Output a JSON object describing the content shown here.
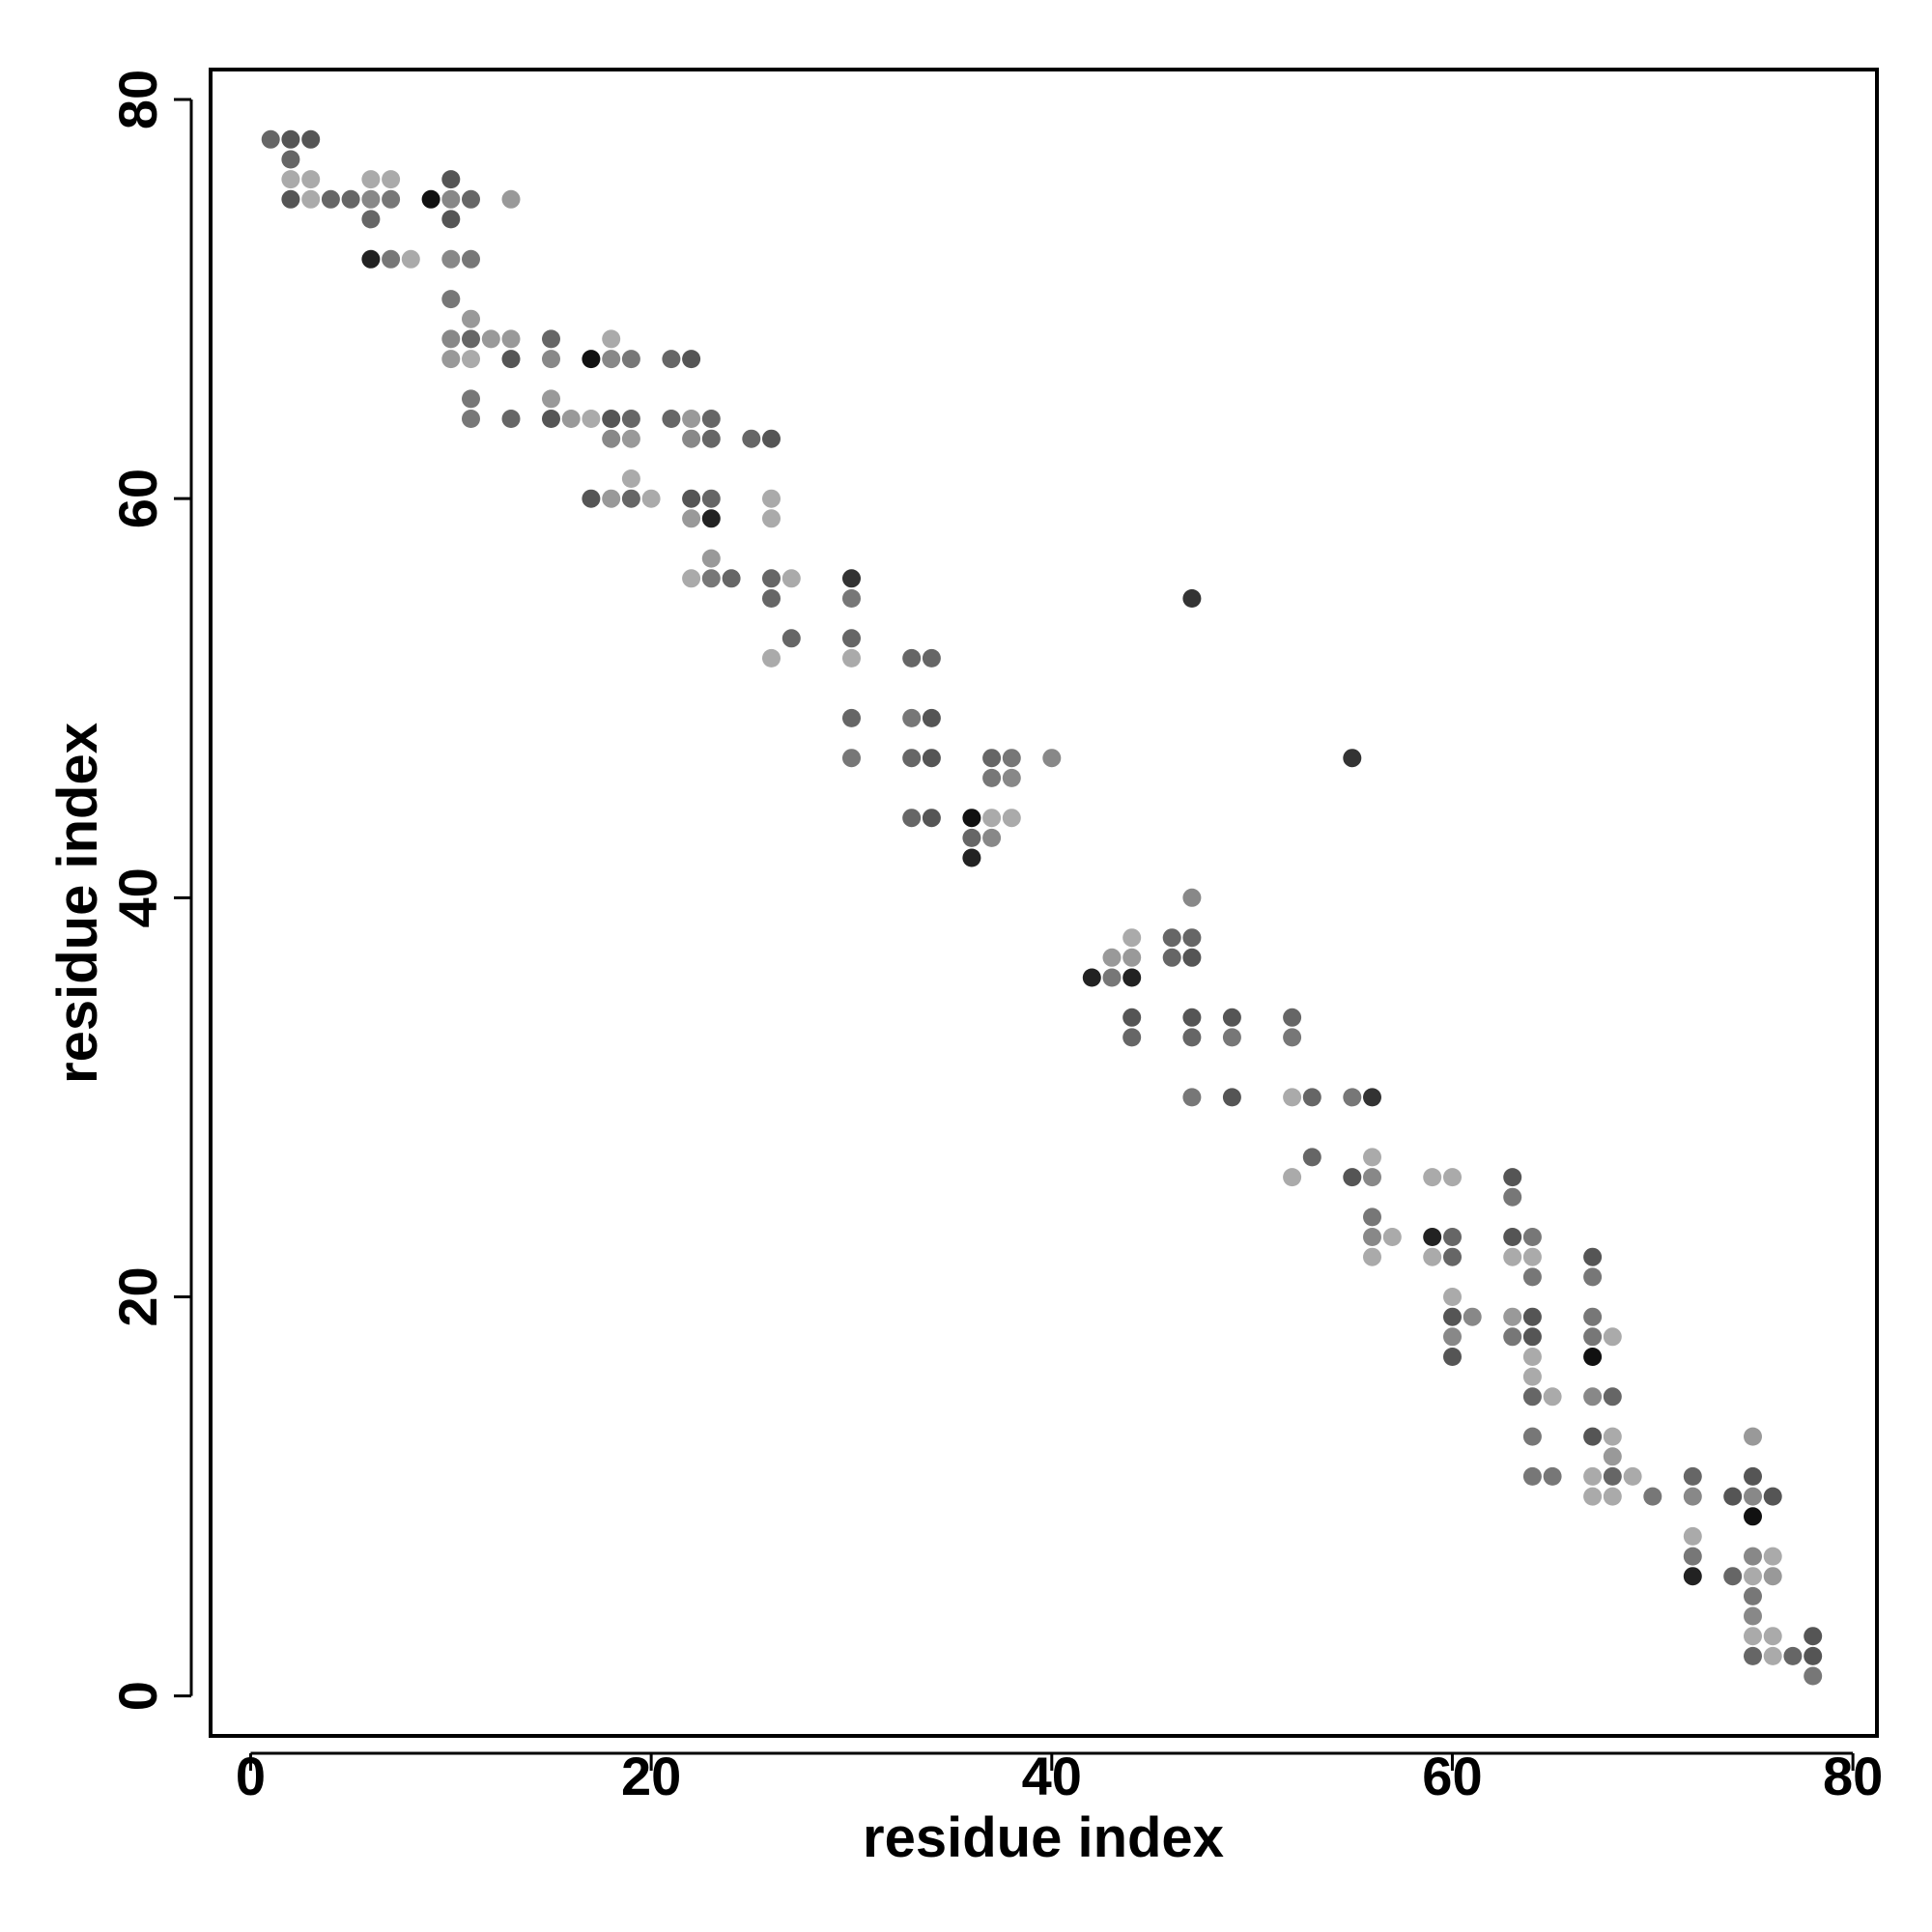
{
  "chart_data": {
    "type": "scatter",
    "title": "",
    "xlabel": "residue index",
    "ylabel": "residue index",
    "xlim": [
      -2,
      81.2
    ],
    "ylim": [
      -2,
      81.5
    ],
    "xticks": [
      0,
      20,
      40,
      60,
      80
    ],
    "yticks": [
      0,
      20,
      40,
      60,
      80
    ],
    "tick_labels_x": [
      "0",
      "20",
      "40",
      "60",
      "80"
    ],
    "tick_labels_y": [
      "0",
      "20",
      "40",
      "60",
      "80"
    ],
    "grid": false,
    "marker_color": "grayscale (black to light gray)",
    "points": [
      [
        1,
        78,
        "#666"
      ],
      [
        2,
        78,
        "#555"
      ],
      [
        3,
        78,
        "#555"
      ],
      [
        2,
        77,
        "#666"
      ],
      [
        2,
        76,
        "#aaa"
      ],
      [
        3,
        76,
        "#aaa"
      ],
      [
        2,
        75,
        "#555"
      ],
      [
        3,
        75,
        "#aaa"
      ],
      [
        4,
        75,
        "#666"
      ],
      [
        5,
        75,
        "#666"
      ],
      [
        6,
        75,
        "#888"
      ],
      [
        7,
        75,
        "#777"
      ],
      [
        6,
        76,
        "#aaa"
      ],
      [
        7,
        76,
        "#aaa"
      ],
      [
        6,
        74,
        "#666"
      ],
      [
        9,
        75,
        "#111"
      ],
      [
        10,
        75,
        "#888"
      ],
      [
        11,
        75,
        "#666"
      ],
      [
        13,
        75,
        "#999"
      ],
      [
        10,
        76,
        "#555"
      ],
      [
        10,
        74,
        "#555"
      ],
      [
        6,
        72,
        "#222"
      ],
      [
        7,
        72,
        "#777"
      ],
      [
        8,
        72,
        "#aaa"
      ],
      [
        10,
        72,
        "#888"
      ],
      [
        11,
        72,
        "#777"
      ],
      [
        10,
        70,
        "#777"
      ],
      [
        10,
        68,
        "#888"
      ],
      [
        11,
        68,
        "#666"
      ],
      [
        12,
        68,
        "#999"
      ],
      [
        13,
        68,
        "#999"
      ],
      [
        11,
        69,
        "#999"
      ],
      [
        10,
        67,
        "#999"
      ],
      [
        11,
        67,
        "#aaa"
      ],
      [
        13,
        67,
        "#555"
      ],
      [
        15,
        68,
        "#666"
      ],
      [
        15,
        67,
        "#888"
      ],
      [
        11,
        65,
        "#777"
      ],
      [
        11,
        64,
        "#777"
      ],
      [
        13,
        64,
        "#666"
      ],
      [
        15,
        65,
        "#999"
      ],
      [
        15,
        64,
        "#555"
      ],
      [
        16,
        64,
        "#999"
      ],
      [
        17,
        64,
        "#aaa"
      ],
      [
        17,
        67,
        "#111"
      ],
      [
        18,
        67,
        "#888"
      ],
      [
        19,
        67,
        "#777"
      ],
      [
        18,
        68,
        "#aaa"
      ],
      [
        18,
        64,
        "#555"
      ],
      [
        19,
        64,
        "#666"
      ],
      [
        18,
        63,
        "#888"
      ],
      [
        19,
        63,
        "#999"
      ],
      [
        21,
        67,
        "#666"
      ],
      [
        22,
        67,
        "#555"
      ],
      [
        21,
        64,
        "#666"
      ],
      [
        22,
        64,
        "#999"
      ],
      [
        23,
        64,
        "#666"
      ],
      [
        22,
        63,
        "#888"
      ],
      [
        23,
        63,
        "#666"
      ],
      [
        25,
        63,
        "#666"
      ],
      [
        26,
        63,
        "#555"
      ],
      [
        17,
        60,
        "#555"
      ],
      [
        18,
        60,
        "#999"
      ],
      [
        19,
        60,
        "#666"
      ],
      [
        20,
        60,
        "#aaa"
      ],
      [
        19,
        61,
        "#aaa"
      ],
      [
        22,
        60,
        "#555"
      ],
      [
        23,
        60,
        "#666"
      ],
      [
        22,
        59,
        "#999"
      ],
      [
        23,
        59,
        "#222"
      ],
      [
        26,
        60,
        "#aaa"
      ],
      [
        26,
        59,
        "#aaa"
      ],
      [
        22,
        56,
        "#aaa"
      ],
      [
        23,
        56,
        "#777"
      ],
      [
        24,
        56,
        "#666"
      ],
      [
        23,
        57,
        "#999"
      ],
      [
        26,
        56,
        "#666"
      ],
      [
        27,
        56,
        "#aaa"
      ],
      [
        26,
        55,
        "#666"
      ],
      [
        27,
        53,
        "#666"
      ],
      [
        26,
        52,
        "#aaa"
      ],
      [
        30,
        56,
        "#333"
      ],
      [
        30,
        55,
        "#777"
      ],
      [
        30,
        53,
        "#666"
      ],
      [
        30,
        52,
        "#aaa"
      ],
      [
        30,
        49,
        "#666"
      ],
      [
        30,
        47,
        "#777"
      ],
      [
        33,
        52,
        "#666"
      ],
      [
        34,
        52,
        "#666"
      ],
      [
        33,
        49,
        "#777"
      ],
      [
        34,
        49,
        "#555"
      ],
      [
        33,
        47,
        "#666"
      ],
      [
        34,
        47,
        "#555"
      ],
      [
        33,
        44,
        "#666"
      ],
      [
        34,
        44,
        "#555"
      ],
      [
        37,
        47,
        "#666"
      ],
      [
        38,
        47,
        "#777"
      ],
      [
        40,
        47,
        "#888"
      ],
      [
        37,
        46,
        "#777"
      ],
      [
        38,
        46,
        "#888"
      ],
      [
        36,
        44,
        "#111"
      ],
      [
        37,
        44,
        "#aaa"
      ],
      [
        38,
        44,
        "#aaa"
      ],
      [
        36,
        43,
        "#666"
      ],
      [
        37,
        43,
        "#888"
      ],
      [
        36,
        42,
        "#222"
      ],
      [
        47,
        55,
        "#333"
      ],
      [
        55,
        47,
        "#333"
      ],
      [
        47,
        40,
        "#888"
      ],
      [
        44,
        38,
        "#aaa"
      ],
      [
        46,
        38,
        "#666"
      ],
      [
        47,
        38,
        "#666"
      ],
      [
        43,
        37,
        "#999"
      ],
      [
        44,
        37,
        "#999"
      ],
      [
        46,
        37,
        "#666"
      ],
      [
        47,
        37,
        "#555"
      ],
      [
        42,
        36,
        "#222"
      ],
      [
        43,
        36,
        "#777"
      ],
      [
        44,
        36,
        "#222"
      ],
      [
        44,
        34,
        "#555"
      ],
      [
        47,
        34,
        "#555"
      ],
      [
        49,
        34,
        "#555"
      ],
      [
        52,
        34,
        "#666"
      ],
      [
        44,
        33,
        "#666"
      ],
      [
        47,
        33,
        "#666"
      ],
      [
        49,
        33,
        "#777"
      ],
      [
        52,
        33,
        "#777"
      ],
      [
        47,
        30,
        "#777"
      ],
      [
        49,
        30,
        "#555"
      ],
      [
        52,
        30,
        "#aaa"
      ],
      [
        53,
        30,
        "#666"
      ],
      [
        55,
        30,
        "#777"
      ],
      [
        56,
        30,
        "#333"
      ],
      [
        53,
        27,
        "#666"
      ],
      [
        52,
        26,
        "#aaa"
      ],
      [
        55,
        26,
        "#555"
      ],
      [
        56,
        26,
        "#888"
      ],
      [
        56,
        27,
        "#aaa"
      ],
      [
        56,
        24,
        "#777"
      ],
      [
        56,
        23,
        "#888"
      ],
      [
        57,
        23,
        "#aaa"
      ],
      [
        56,
        22,
        "#aaa"
      ],
      [
        59,
        26,
        "#aaa"
      ],
      [
        60,
        26,
        "#aaa"
      ],
      [
        59,
        23,
        "#222"
      ],
      [
        60,
        23,
        "#666"
      ],
      [
        59,
        22,
        "#aaa"
      ],
      [
        60,
        22,
        "#666"
      ],
      [
        60,
        20,
        "#aaa"
      ],
      [
        60,
        19,
        "#555"
      ],
      [
        61,
        19,
        "#888"
      ],
      [
        60,
        18,
        "#888"
      ],
      [
        60,
        17,
        "#555"
      ],
      [
        63,
        26,
        "#555"
      ],
      [
        63,
        25,
        "#777"
      ],
      [
        63,
        23,
        "#555"
      ],
      [
        64,
        23,
        "#777"
      ],
      [
        63,
        22,
        "#aaa"
      ],
      [
        64,
        22,
        "#aaa"
      ],
      [
        64,
        21,
        "#777"
      ],
      [
        63,
        19,
        "#999"
      ],
      [
        64,
        19,
        "#555"
      ],
      [
        63,
        18,
        "#777"
      ],
      [
        64,
        18,
        "#555"
      ],
      [
        64,
        17,
        "#aaa"
      ],
      [
        64,
        16,
        "#aaa"
      ],
      [
        64,
        15,
        "#666"
      ],
      [
        65,
        15,
        "#aaa"
      ],
      [
        64,
        13,
        "#777"
      ],
      [
        64,
        11,
        "#777"
      ],
      [
        65,
        11,
        "#777"
      ],
      [
        67,
        22,
        "#555"
      ],
      [
        67,
        21,
        "#777"
      ],
      [
        67,
        19,
        "#777"
      ],
      [
        67,
        18,
        "#777"
      ],
      [
        68,
        18,
        "#aaa"
      ],
      [
        67,
        17,
        "#111"
      ],
      [
        67,
        15,
        "#888"
      ],
      [
        68,
        15,
        "#666"
      ],
      [
        67,
        13,
        "#555"
      ],
      [
        68,
        13,
        "#aaa"
      ],
      [
        68,
        12,
        "#999"
      ],
      [
        67,
        11,
        "#aaa"
      ],
      [
        68,
        11,
        "#666"
      ],
      [
        69,
        11,
        "#aaa"
      ],
      [
        67,
        10,
        "#aaa"
      ],
      [
        68,
        10,
        "#aaa"
      ],
      [
        70,
        10,
        "#777"
      ],
      [
        72,
        11,
        "#666"
      ],
      [
        72,
        10,
        "#888"
      ],
      [
        74,
        10,
        "#555"
      ],
      [
        75,
        11,
        "#555"
      ],
      [
        75,
        10,
        "#888"
      ],
      [
        76,
        10,
        "#555"
      ],
      [
        75,
        13,
        "#999"
      ],
      [
        75,
        9,
        "#111"
      ],
      [
        72,
        8,
        "#aaa"
      ],
      [
        72,
        7,
        "#777"
      ],
      [
        72,
        6,
        "#222"
      ],
      [
        74,
        6,
        "#666"
      ],
      [
        75,
        7,
        "#888"
      ],
      [
        76,
        7,
        "#aaa"
      ],
      [
        75,
        6,
        "#aaa"
      ],
      [
        76,
        6,
        "#999"
      ],
      [
        75,
        5,
        "#777"
      ],
      [
        75,
        4,
        "#888"
      ],
      [
        75,
        3,
        "#aaa"
      ],
      [
        76,
        3,
        "#aaa"
      ],
      [
        75,
        2,
        "#666"
      ],
      [
        76,
        2,
        "#aaa"
      ],
      [
        77,
        2,
        "#666"
      ],
      [
        78,
        3,
        "#555"
      ],
      [
        78,
        2,
        "#555"
      ],
      [
        78,
        1,
        "#777"
      ]
    ]
  }
}
